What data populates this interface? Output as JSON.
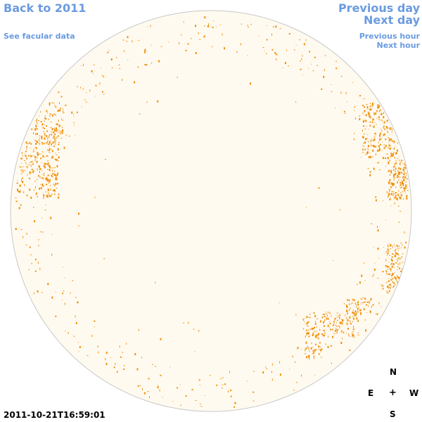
{
  "nav": {
    "back_label": "Back to 2011",
    "facular_label": "See facular data",
    "previous_day_label": "Previous day",
    "next_day_label": "Next day",
    "previous_hour_label": "Previous hour",
    "next_hour_label": "Next hour"
  },
  "compass": {
    "north": "N",
    "east": "E",
    "center": "+",
    "west": "W",
    "south": "S"
  },
  "timestamp": "2011-10-21T16:59:01",
  "colors": {
    "link": "#6b9be0",
    "disk_fill": "#fffaf0",
    "disk_edge": "#c8c8c8",
    "facula": "#f0900a"
  },
  "icons": {
    "disk": "solar-disk-icon"
  }
}
